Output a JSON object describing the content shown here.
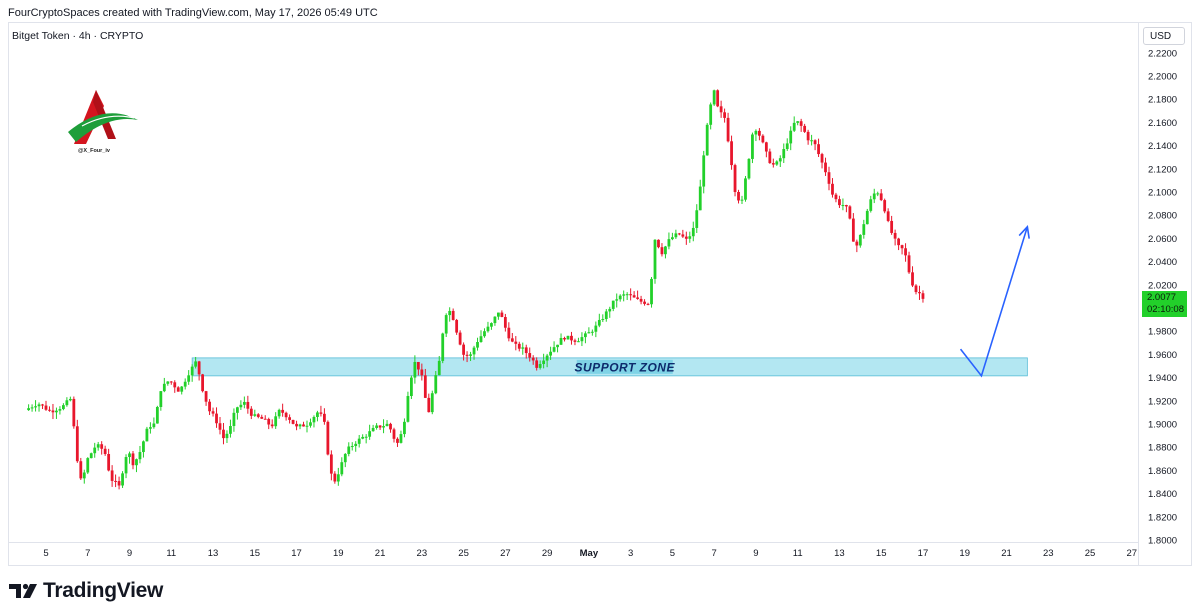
{
  "header": {
    "credit": "FourCryptoSpaces created with TradingView.com, May 17, 2026 05:49 UTC",
    "symbol": "Bitget Token · 4h · CRYPTO"
  },
  "currency_label": "USD",
  "last_price": {
    "value": "2.0077",
    "countdown": "02:10:08",
    "color": "#22d02a"
  },
  "brand": {
    "handle": "@X_Four_iv"
  },
  "footer": {
    "logo_icon": "tradingview-logo-icon",
    "wordmark": "TradingView"
  },
  "annotations": {
    "support_label": "SUPPORT ZONE"
  },
  "colors": {
    "up": "#22d02a",
    "down": "#e8162c",
    "zone": "#a6e3f0",
    "arrow": "#2962ff"
  },
  "chart_data": {
    "type": "candlestick",
    "x_ticks": [
      {
        "label": "5",
        "day": 5
      },
      {
        "label": "7",
        "day": 7
      },
      {
        "label": "9",
        "day": 9
      },
      {
        "label": "11",
        "day": 11
      },
      {
        "label": "13",
        "day": 13
      },
      {
        "label": "15",
        "day": 15
      },
      {
        "label": "17",
        "day": 17
      },
      {
        "label": "19",
        "day": 19
      },
      {
        "label": "21",
        "day": 21
      },
      {
        "label": "23",
        "day": 23
      },
      {
        "label": "25",
        "day": 25
      },
      {
        "label": "27",
        "day": 27
      },
      {
        "label": "29",
        "day": 29
      },
      {
        "label": "May",
        "day": 31
      },
      {
        "label": "3",
        "day": 33
      },
      {
        "label": "5",
        "day": 35
      },
      {
        "label": "7",
        "day": 37
      },
      {
        "label": "9",
        "day": 39
      },
      {
        "label": "11",
        "day": 41
      },
      {
        "label": "13",
        "day": 43
      },
      {
        "label": "15",
        "day": 45
      },
      {
        "label": "17",
        "day": 47
      },
      {
        "label": "19",
        "day": 49
      },
      {
        "label": "21",
        "day": 51
      },
      {
        "label": "23",
        "day": 53
      },
      {
        "label": "25",
        "day": 55
      },
      {
        "label": "27",
        "day": 57
      }
    ],
    "y_ticks": [
      "1.8000",
      "1.8200",
      "1.8400",
      "1.8600",
      "1.8800",
      "1.9000",
      "1.9200",
      "1.9400",
      "1.9600",
      "1.9800",
      "2.0000",
      "2.0200",
      "2.0400",
      "2.0600",
      "2.0800",
      "2.1000",
      "2.1200",
      "2.1400",
      "2.1600",
      "2.1800",
      "2.2000",
      "2.2200"
    ],
    "ylim": [
      1.8,
      2.22
    ],
    "xlim_days": [
      4,
      58
    ],
    "support_zone": {
      "low": 1.9415,
      "high": 1.957,
      "start_day": 12.0,
      "end_day": 52.0
    },
    "projection": [
      {
        "day": 48.8,
        "price": 1.9645
      },
      {
        "day": 49.8,
        "price": 1.9415
      },
      {
        "day": 52.0,
        "price": 2.07
      }
    ],
    "price_points": [
      [
        4.0,
        1.912
      ],
      [
        4.6,
        1.918
      ],
      [
        5.2,
        1.911
      ],
      [
        5.8,
        1.915
      ],
      [
        6.2,
        1.922
      ],
      [
        6.45,
        1.875
      ],
      [
        6.7,
        1.848
      ],
      [
        7.0,
        1.87
      ],
      [
        7.4,
        1.882
      ],
      [
        7.8,
        1.877
      ],
      [
        8.1,
        1.853
      ],
      [
        8.5,
        1.846
      ],
      [
        8.9,
        1.878
      ],
      [
        9.2,
        1.865
      ],
      [
        9.5,
        1.876
      ],
      [
        9.9,
        1.898
      ],
      [
        10.2,
        1.9
      ],
      [
        10.5,
        1.93
      ],
      [
        10.9,
        1.938
      ],
      [
        11.4,
        1.928
      ],
      [
        11.8,
        1.943
      ],
      [
        12.2,
        1.954
      ],
      [
        12.5,
        1.93
      ],
      [
        12.8,
        1.912
      ],
      [
        13.1,
        1.905
      ],
      [
        13.5,
        1.888
      ],
      [
        13.8,
        1.895
      ],
      [
        14.1,
        1.914
      ],
      [
        14.5,
        1.918
      ],
      [
        14.9,
        1.907
      ],
      [
        15.4,
        1.904
      ],
      [
        15.8,
        1.898
      ],
      [
        16.2,
        1.912
      ],
      [
        16.6,
        1.906
      ],
      [
        17.0,
        1.897
      ],
      [
        17.5,
        1.9
      ],
      [
        18.0,
        1.91
      ],
      [
        18.3,
        1.905
      ],
      [
        18.55,
        1.868
      ],
      [
        18.75,
        1.848
      ],
      [
        19.0,
        1.858
      ],
      [
        19.4,
        1.877
      ],
      [
        19.8,
        1.884
      ],
      [
        20.3,
        1.89
      ],
      [
        20.8,
        1.897
      ],
      [
        21.4,
        1.9
      ],
      [
        21.8,
        1.882
      ],
      [
        22.1,
        1.895
      ],
      [
        22.4,
        1.935
      ],
      [
        22.7,
        1.955
      ],
      [
        23.0,
        1.94
      ],
      [
        23.3,
        1.908
      ],
      [
        23.6,
        1.935
      ],
      [
        23.85,
        1.955
      ],
      [
        24.1,
        1.995
      ],
      [
        24.4,
        1.998
      ],
      [
        24.7,
        1.978
      ],
      [
        25.0,
        1.96
      ],
      [
        25.3,
        1.958
      ],
      [
        25.6,
        1.97
      ],
      [
        26.0,
        1.98
      ],
      [
        26.3,
        1.985
      ],
      [
        26.7,
        1.998
      ],
      [
        27.1,
        1.978
      ],
      [
        27.4,
        1.968
      ],
      [
        27.8,
        1.965
      ],
      [
        28.2,
        1.958
      ],
      [
        28.5,
        1.95
      ],
      [
        28.9,
        1.958
      ],
      [
        29.4,
        1.968
      ],
      [
        29.8,
        1.975
      ],
      [
        30.4,
        1.972
      ],
      [
        30.9,
        1.977
      ],
      [
        31.3,
        1.983
      ],
      [
        31.8,
        1.995
      ],
      [
        32.3,
        2.008
      ],
      [
        32.8,
        2.012
      ],
      [
        33.4,
        2.006
      ],
      [
        33.9,
        2.004
      ],
      [
        34.15,
        2.06
      ],
      [
        34.5,
        2.048
      ],
      [
        34.9,
        2.06
      ],
      [
        35.3,
        2.064
      ],
      [
        35.7,
        2.058
      ],
      [
        36.0,
        2.068
      ],
      [
        36.3,
        2.098
      ],
      [
        36.55,
        2.142
      ],
      [
        36.8,
        2.172
      ],
      [
        37.0,
        2.186
      ],
      [
        37.2,
        2.17
      ],
      [
        37.5,
        2.164
      ],
      [
        37.75,
        2.136
      ],
      [
        38.0,
        2.102
      ],
      [
        38.3,
        2.088
      ],
      [
        38.6,
        2.122
      ],
      [
        38.9,
        2.158
      ],
      [
        39.2,
        2.148
      ],
      [
        39.6,
        2.128
      ],
      [
        39.9,
        2.122
      ],
      [
        40.2,
        2.13
      ],
      [
        40.6,
        2.148
      ],
      [
        40.9,
        2.162
      ],
      [
        41.2,
        2.156
      ],
      [
        41.5,
        2.146
      ],
      [
        41.8,
        2.142
      ],
      [
        42.1,
        2.128
      ],
      [
        42.4,
        2.115
      ],
      [
        42.7,
        2.096
      ],
      [
        43.0,
        2.09
      ],
      [
        43.3,
        2.088
      ],
      [
        43.55,
        2.072
      ],
      [
        43.75,
        2.05
      ],
      [
        44.0,
        2.062
      ],
      [
        44.3,
        2.082
      ],
      [
        44.6,
        2.098
      ],
      [
        44.85,
        2.1
      ],
      [
        45.1,
        2.09
      ],
      [
        45.35,
        2.072
      ],
      [
        45.6,
        2.06
      ],
      [
        45.85,
        2.052
      ],
      [
        46.1,
        2.05
      ],
      [
        46.35,
        2.03
      ],
      [
        46.6,
        2.015
      ],
      [
        46.9,
        2.012
      ],
      [
        47.1,
        2.0077
      ]
    ]
  }
}
